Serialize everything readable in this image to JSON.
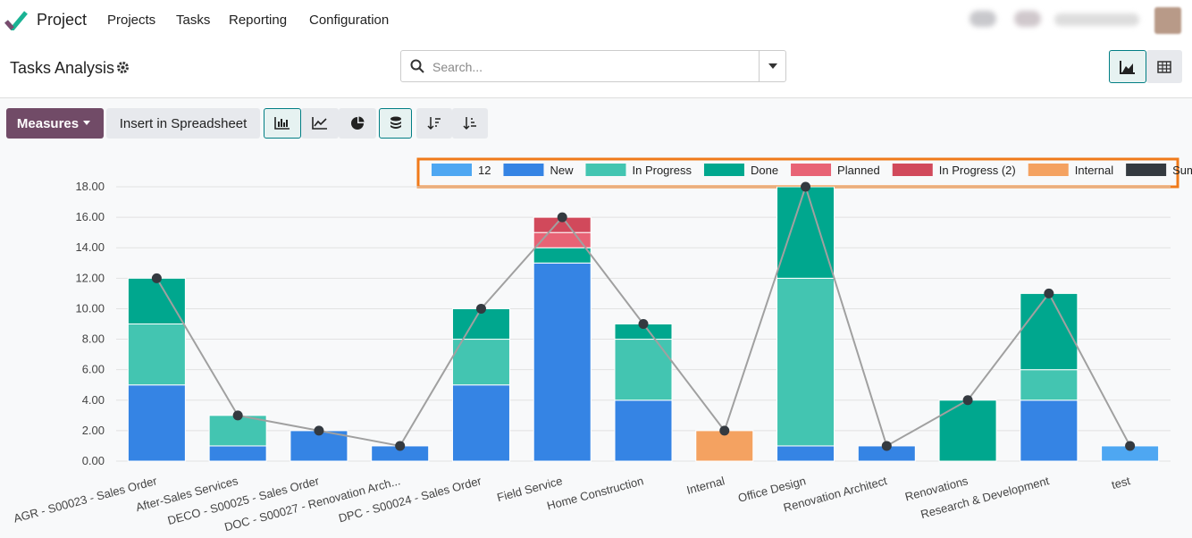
{
  "app": {
    "name": "Project",
    "menu": [
      "Projects",
      "Tasks",
      "Reporting",
      "Configuration"
    ]
  },
  "header": {
    "title": "Tasks Analysis",
    "search_placeholder": "Search..."
  },
  "toolbar": {
    "measures": "Measures",
    "insert": "Insert in Spreadsheet"
  },
  "chart_data": {
    "type": "bar",
    "stacked": true,
    "categories": [
      "AGR - S00023 - Sales Order",
      "After-Sales Services",
      "DECO - S00025 - Sales Order",
      "DOC - S00027 - Renovation Arch...",
      "DPC - S00024 - Sales Order",
      "Field Service",
      "Home Construction",
      "Internal",
      "Office Design",
      "Renovation Architect",
      "Renovations",
      "Research & Development",
      "test"
    ],
    "series": [
      {
        "name": "12",
        "color": "#4ea7f2",
        "values": [
          null,
          null,
          null,
          null,
          null,
          null,
          null,
          null,
          null,
          null,
          null,
          null,
          1
        ]
      },
      {
        "name": "New",
        "color": "#3584e4",
        "values": [
          5,
          1,
          2,
          1,
          5,
          13,
          4,
          null,
          1,
          1,
          null,
          4,
          null
        ]
      },
      {
        "name": "In Progress",
        "color": "#43c5b1",
        "values": [
          4,
          2,
          null,
          null,
          3,
          null,
          4,
          null,
          11,
          null,
          null,
          2,
          null
        ]
      },
      {
        "name": "Done",
        "color": "#00a78e",
        "values": [
          3,
          null,
          null,
          null,
          2,
          1,
          1,
          null,
          6,
          null,
          4,
          5,
          null
        ]
      },
      {
        "name": "Planned",
        "color": "#e86375",
        "values": [
          null,
          null,
          null,
          null,
          null,
          1,
          null,
          null,
          null,
          null,
          null,
          null,
          null
        ]
      },
      {
        "name": "In Progress (2)",
        "color": "#d1495b",
        "values": [
          null,
          null,
          null,
          null,
          null,
          1,
          null,
          null,
          null,
          null,
          null,
          null,
          null
        ]
      },
      {
        "name": "Internal",
        "color": "#f4a261",
        "values": [
          null,
          null,
          null,
          null,
          null,
          null,
          null,
          2,
          null,
          null,
          null,
          null,
          null
        ]
      },
      {
        "name": "Sum",
        "color": "#343a40",
        "type": "line",
        "values": [
          12,
          3,
          2,
          1,
          10,
          16,
          9,
          2,
          18,
          1,
          4,
          11,
          1
        ]
      }
    ],
    "ylim": [
      0,
      18
    ],
    "yticks": [
      {
        "value": 0,
        "label": "0.00"
      },
      {
        "value": 2,
        "label": "2.00"
      },
      {
        "value": 4,
        "label": "4.00"
      },
      {
        "value": 6,
        "label": "6.00"
      },
      {
        "value": 8,
        "label": "8.00"
      },
      {
        "value": 10,
        "label": "10.00"
      },
      {
        "value": 12,
        "label": "12.00"
      },
      {
        "value": 14,
        "label": "14.00"
      },
      {
        "value": 16,
        "label": "16.00"
      },
      {
        "value": 18,
        "label": "18.00"
      }
    ],
    "grid": true,
    "legend": "top-right"
  }
}
